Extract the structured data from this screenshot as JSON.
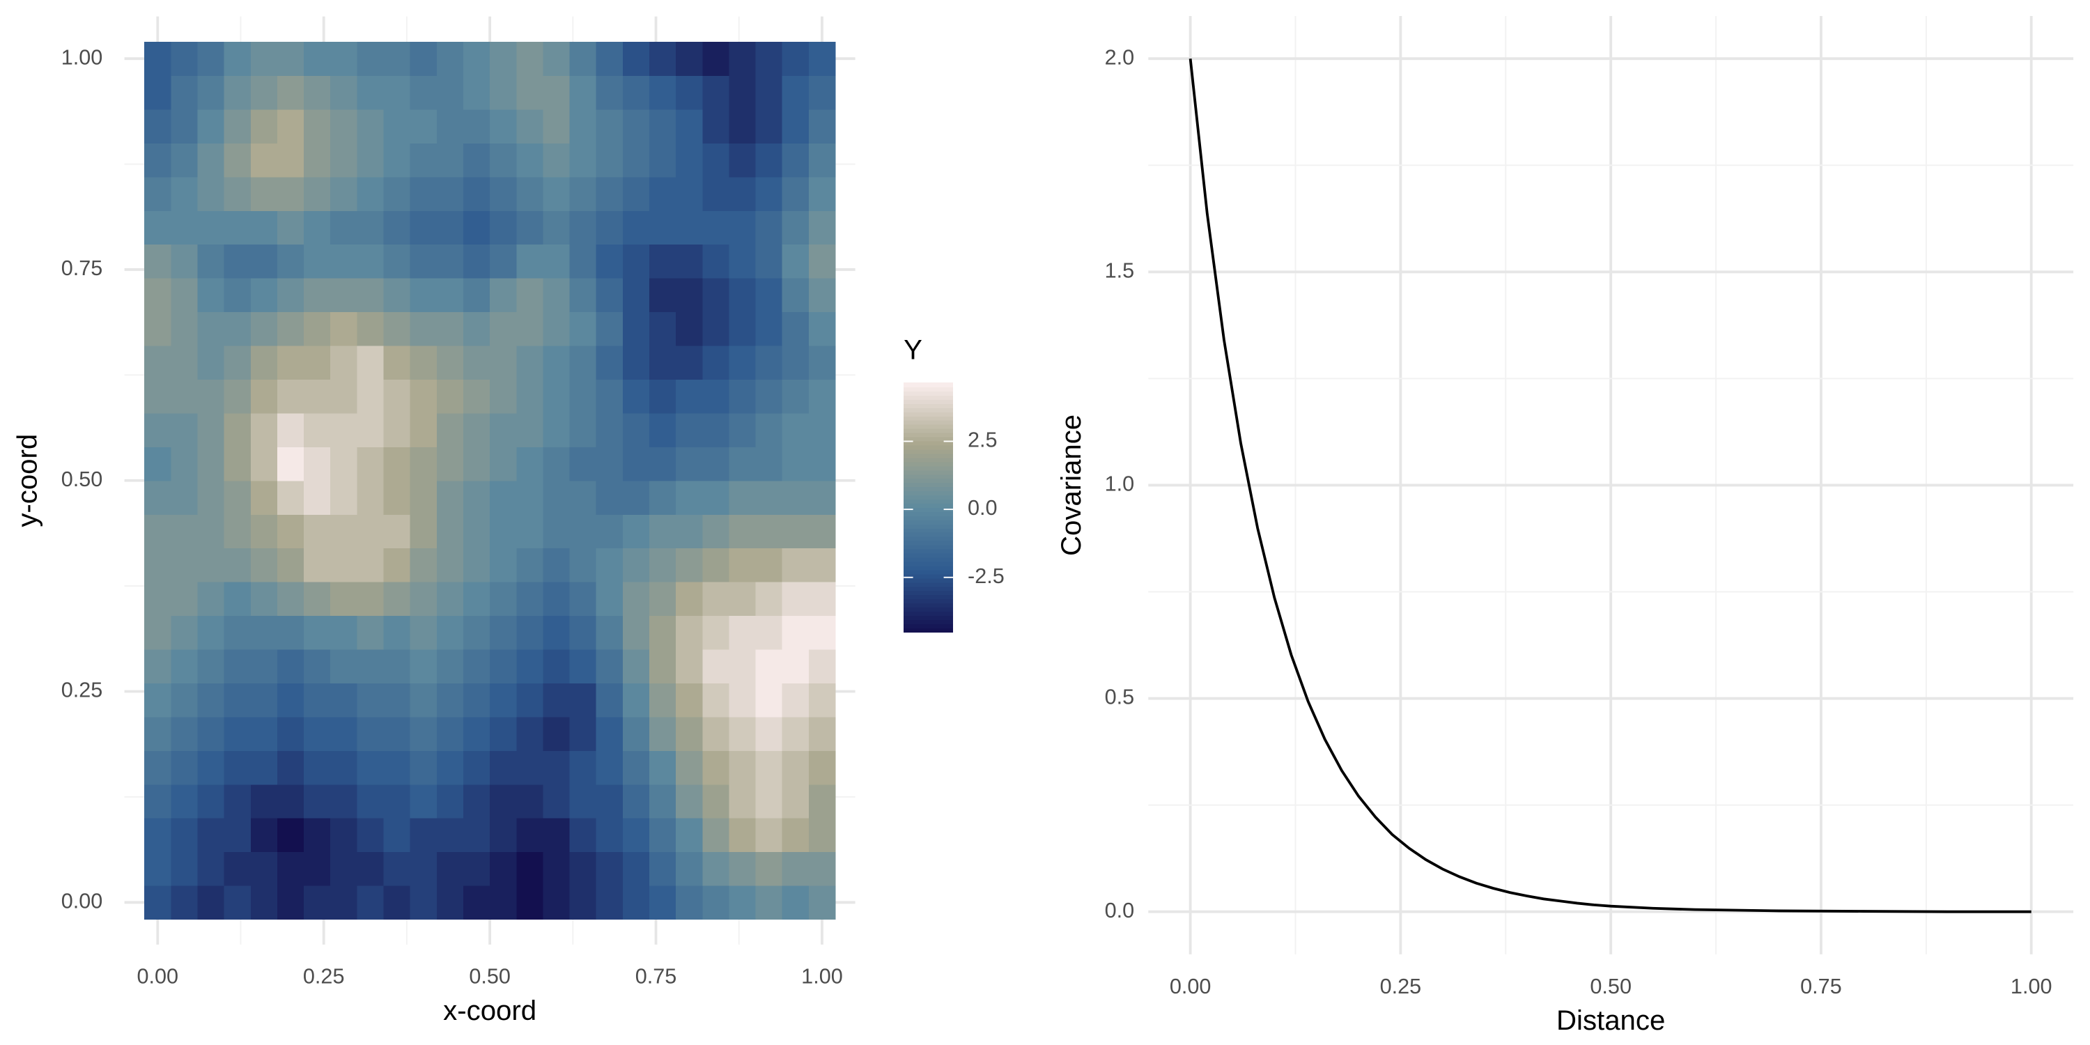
{
  "chart_data": [
    {
      "type": "heatmap",
      "xlabel": "x-coord",
      "ylabel": "y-coord",
      "legend_title": "Y",
      "x": [
        0,
        0.04,
        0.08,
        0.12,
        0.16,
        0.2,
        0.24,
        0.28,
        0.32,
        0.36,
        0.4,
        0.44,
        0.48,
        0.52,
        0.56,
        0.6,
        0.64,
        0.68,
        0.72,
        0.76,
        0.8,
        0.84,
        0.88,
        0.92,
        0.96,
        1
      ],
      "y": [
        0,
        0.04,
        0.08,
        0.12,
        0.16,
        0.2,
        0.24,
        0.28,
        0.32,
        0.36,
        0.4,
        0.44,
        0.48,
        0.52,
        0.56,
        0.6,
        0.64,
        0.68,
        0.72,
        0.76,
        0.8,
        0.84,
        0.88,
        0.92,
        0.96,
        1
      ],
      "z": [
        [
          -2.5,
          -3,
          -3.5,
          -3,
          -3.5,
          -4,
          -3.5,
          -3.5,
          -3,
          -3.5,
          -3,
          -3.5,
          -4,
          -4,
          -4.5,
          -4,
          -3.5,
          -3,
          -2.5,
          -2,
          -1,
          -0.5,
          0,
          0.5,
          0,
          0.5
        ],
        [
          -2,
          -2.5,
          -3,
          -3.5,
          -3.5,
          -4,
          -4,
          -3.5,
          -3.5,
          -3,
          -3,
          -3.5,
          -3.5,
          -4,
          -4.5,
          -4,
          -3.5,
          -3,
          -2.5,
          -1.5,
          -0.5,
          0.5,
          1,
          1.5,
          1,
          1
        ],
        [
          -2,
          -2.5,
          -3,
          -3,
          -4,
          -4.5,
          -4,
          -3.5,
          -3,
          -2.5,
          -3,
          -3,
          -3,
          -3.5,
          -4,
          -4,
          -3,
          -2.5,
          -2,
          -1,
          0,
          1.5,
          2.5,
          3,
          2.5,
          2
        ],
        [
          -1.5,
          -2,
          -2.5,
          -3,
          -3.5,
          -3.5,
          -3,
          -3,
          -2.5,
          -2.5,
          -2,
          -2.5,
          -3,
          -3.5,
          -3.5,
          -3,
          -2.5,
          -2.5,
          -1.5,
          -0.5,
          1,
          2,
          3,
          3.5,
          3,
          2
        ],
        [
          -1,
          -1.5,
          -2,
          -2.5,
          -2.5,
          -3,
          -2.5,
          -2.5,
          -2,
          -2,
          -1.5,
          -2,
          -2.5,
          -3,
          -3,
          -3,
          -2.5,
          -2,
          -1,
          0,
          1.5,
          2.5,
          3,
          3.5,
          3,
          2.5
        ],
        [
          -0.5,
          -1,
          -1.5,
          -2,
          -2,
          -2.5,
          -2,
          -2,
          -1.5,
          -1.5,
          -1,
          -1.5,
          -2,
          -2.5,
          -3,
          -3.5,
          -3,
          -2,
          -0.5,
          1,
          2,
          3,
          3.5,
          4,
          3.5,
          3
        ],
        [
          0,
          -0.5,
          -1,
          -1.5,
          -1.5,
          -2,
          -1.5,
          -1.5,
          -1,
          -1,
          -0.5,
          -1,
          -1.5,
          -2,
          -2.5,
          -3,
          -3,
          -1.5,
          0,
          1.5,
          2.5,
          3.5,
          4,
          4.5,
          4,
          3.5
        ],
        [
          0.5,
          0,
          -0.5,
          -1,
          -1,
          -1.5,
          -1,
          -0.5,
          -0.5,
          -0.5,
          0,
          -0.5,
          -1,
          -1.5,
          -2,
          -2.5,
          -2,
          -1,
          0.5,
          2,
          3,
          4,
          4,
          4.5,
          4.5,
          4
        ],
        [
          1,
          0.5,
          0,
          -0.5,
          -0.5,
          -0.5,
          0,
          0,
          0.5,
          0,
          0.5,
          0,
          -0.5,
          -1,
          -1.5,
          -2,
          -1.5,
          -0.5,
          1,
          2,
          3,
          3.5,
          4,
          4,
          4.5,
          4.5
        ],
        [
          1,
          1,
          0.5,
          0,
          0.5,
          1,
          1.5,
          2,
          2,
          1.5,
          1,
          0.5,
          0,
          -0.5,
          -1,
          -1.5,
          -1,
          0,
          1,
          1.5,
          2.5,
          3,
          3,
          3.5,
          4,
          4
        ],
        [
          1,
          1,
          1,
          1,
          1.5,
          2,
          3,
          3,
          3,
          2.5,
          1.5,
          1,
          0.5,
          0,
          -0.5,
          -1,
          -0.5,
          0,
          0.5,
          1,
          1.5,
          2,
          2.5,
          2.5,
          3,
          3
        ],
        [
          1,
          1,
          1,
          1.5,
          2,
          2.5,
          3,
          3,
          3,
          3,
          2,
          1,
          0.5,
          0,
          0,
          -0.5,
          -0.5,
          -0.5,
          0,
          0.5,
          0.5,
          1,
          1.5,
          1.5,
          1.5,
          1.5
        ],
        [
          0.5,
          0.5,
          1,
          1.5,
          2.5,
          3.5,
          4,
          3.5,
          3,
          2.5,
          2,
          1,
          0.5,
          0,
          0,
          -0.5,
          -0.5,
          -1,
          -1,
          -0.5,
          0,
          0,
          0.5,
          0.5,
          0.5,
          0.5
        ],
        [
          0,
          0.5,
          1,
          2,
          3,
          4.5,
          4,
          3.5,
          3,
          2.5,
          2,
          1.5,
          1,
          0.5,
          0,
          -0.5,
          -1,
          -1,
          -1.5,
          -1.5,
          -1,
          -1,
          -0.5,
          -0.5,
          0,
          0
        ],
        [
          0.5,
          0.5,
          1,
          2,
          3,
          4,
          3.5,
          3.5,
          3.5,
          3,
          2.5,
          1.5,
          1,
          0.5,
          0.5,
          0,
          -0.5,
          -1,
          -1.5,
          -2,
          -1.5,
          -1.5,
          -1,
          -0.5,
          0,
          0
        ],
        [
          1,
          1,
          1,
          1.5,
          2.5,
          3,
          3,
          3,
          3.5,
          3,
          2.5,
          2,
          1.5,
          1,
          0.5,
          0,
          -0.5,
          -1,
          -2,
          -2.5,
          -2,
          -2,
          -1.5,
          -1,
          -0.5,
          0
        ],
        [
          1,
          1,
          0.5,
          1,
          2,
          2.5,
          2.5,
          3,
          3.5,
          2.5,
          2,
          1.5,
          1,
          1,
          0.5,
          0,
          -0.5,
          -1.5,
          -2.5,
          -3,
          -3,
          -2.5,
          -2,
          -1.5,
          -1,
          -0.5
        ],
        [
          1.5,
          1,
          0.5,
          0.5,
          1,
          1.5,
          2,
          2.5,
          2,
          1.5,
          1,
          1,
          0.5,
          1,
          1,
          0.5,
          0,
          -1,
          -2.5,
          -3,
          -3.5,
          -3,
          -2.5,
          -2,
          -1,
          0
        ],
        [
          1.5,
          1,
          0,
          -0.5,
          0,
          0.5,
          1,
          1,
          1,
          0.5,
          0,
          0,
          -0.5,
          0.5,
          1,
          0.5,
          -0.5,
          -1.5,
          -2.5,
          -3.5,
          -3.5,
          -3,
          -2.5,
          -2,
          -0.5,
          0.5
        ],
        [
          1,
          0.5,
          -0.5,
          -1,
          -1,
          -0.5,
          0,
          0,
          0,
          -0.5,
          -1,
          -1,
          -1.5,
          -1,
          0,
          0,
          -1,
          -2,
          -2.5,
          -3,
          -3,
          -2.5,
          -2,
          -1.5,
          0,
          1
        ],
        [
          0,
          0,
          0,
          0,
          0,
          0.5,
          0,
          -0.5,
          -0.5,
          -1,
          -1.5,
          -1.5,
          -2,
          -1.5,
          -1,
          -0.5,
          -1,
          -1.5,
          -2,
          -2,
          -2,
          -2,
          -2,
          -1.5,
          -0.5,
          0.5
        ],
        [
          -0.5,
          0,
          0.5,
          1,
          1.5,
          1.5,
          1,
          0.5,
          0,
          -0.5,
          -1,
          -1,
          -1.5,
          -1,
          -0.5,
          0,
          -0.5,
          -1,
          -1.5,
          -2,
          -2,
          -2.5,
          -2.5,
          -2,
          -1,
          0
        ],
        [
          -1,
          -0.5,
          0.5,
          1.5,
          2.5,
          2.5,
          1.5,
          1,
          0.5,
          0,
          -0.5,
          -0.5,
          -1,
          -0.5,
          0,
          0.5,
          0,
          -0.5,
          -1,
          -1.5,
          -2,
          -2.5,
          -3,
          -2.5,
          -1.5,
          -0.5
        ],
        [
          -1.5,
          -1,
          0,
          1,
          2,
          2.5,
          1.5,
          1,
          0.5,
          0,
          0,
          -0.5,
          -0.5,
          0,
          0.5,
          1,
          0,
          -0.5,
          -1,
          -1.5,
          -2,
          -3,
          -3.5,
          -3,
          -2,
          -1
        ],
        [
          -2,
          -1,
          -0.5,
          0.5,
          1,
          1.5,
          1,
          0.5,
          0,
          0,
          -0.5,
          -0.5,
          0,
          0.5,
          1,
          1,
          0,
          -1,
          -1.5,
          -2,
          -2.5,
          -3,
          -3.5,
          -3,
          -2,
          -1.5
        ],
        [
          -2,
          -1.5,
          -1,
          0,
          0.5,
          0.5,
          0,
          0,
          -0.5,
          -0.5,
          -1,
          -0.5,
          0,
          0.5,
          1,
          0.5,
          -0.5,
          -1.5,
          -2.5,
          -3,
          -3.5,
          -4,
          -3.5,
          -3,
          -2.5,
          -2
        ]
      ],
      "xlim": [
        -0.05,
        1.05
      ],
      "ylim": [
        -0.05,
        1.05
      ],
      "xticks": [
        {
          "value": 0,
          "label": "0.00"
        },
        {
          "value": 0.25,
          "label": "0.25"
        },
        {
          "value": 0.5,
          "label": "0.50"
        },
        {
          "value": 0.75,
          "label": "0.75"
        },
        {
          "value": 1,
          "label": "1.00"
        }
      ],
      "yticks": [
        {
          "value": 0,
          "label": "0.00"
        },
        {
          "value": 0.25,
          "label": "0.25"
        },
        {
          "value": 0.5,
          "label": "0.50"
        },
        {
          "value": 0.75,
          "label": "0.75"
        },
        {
          "value": 1,
          "label": "1.00"
        }
      ],
      "zlim": [
        -4.5,
        4.66
      ],
      "zticks": [
        -2.5,
        {
          "value": 0,
          "label": "0.0"
        },
        2.5
      ],
      "colors": [
        "#13104f",
        "#2e5a90",
        "#5e8a9e",
        "#a8a68c",
        "#fbeeee"
      ],
      "grid": true
    },
    {
      "type": "line",
      "xlabel": "Distance",
      "ylabel": "Covariance",
      "x": [
        0,
        0.02,
        0.04,
        0.06,
        0.08,
        0.1,
        0.12,
        0.14,
        0.16,
        0.18,
        0.2,
        0.22,
        0.24,
        0.26,
        0.28,
        0.3,
        0.32,
        0.34,
        0.36,
        0.38,
        0.4,
        0.42,
        0.44,
        0.46,
        0.48,
        0.5,
        0.55,
        0.6,
        0.7,
        0.8,
        0.9,
        1
      ],
      "series": [
        {
          "color": "#000000",
          "values": [
            2,
            1.637,
            1.341,
            1.098,
            0.899,
            0.736,
            0.602,
            0.493,
            0.404,
            0.331,
            0.271,
            0.222,
            0.181,
            0.149,
            0.122,
            0.1,
            0.082,
            0.067,
            0.055,
            0.045,
            0.037,
            0.03,
            0.025,
            0.02,
            0.016,
            0.013,
            0.008,
            0.005,
            0.002,
            0.001,
            0,
            0
          ]
        }
      ],
      "xlim": [
        -0.05,
        1.05
      ],
      "ylim": [
        -0.1,
        2.1
      ],
      "xticks": [
        {
          "value": 0,
          "label": "0.00"
        },
        {
          "value": 0.25,
          "label": "0.25"
        },
        {
          "value": 0.5,
          "label": "0.50"
        },
        {
          "value": 0.75,
          "label": "0.75"
        },
        {
          "value": 1,
          "label": "1.00"
        }
      ],
      "yticks": [
        {
          "value": 0,
          "label": "0.0"
        },
        {
          "value": 0.5,
          "label": "0.5"
        },
        {
          "value": 1,
          "label": "1.0"
        },
        {
          "value": 1.5,
          "label": "1.5"
        },
        {
          "value": 2,
          "label": "2.0"
        }
      ],
      "grid": true
    }
  ]
}
